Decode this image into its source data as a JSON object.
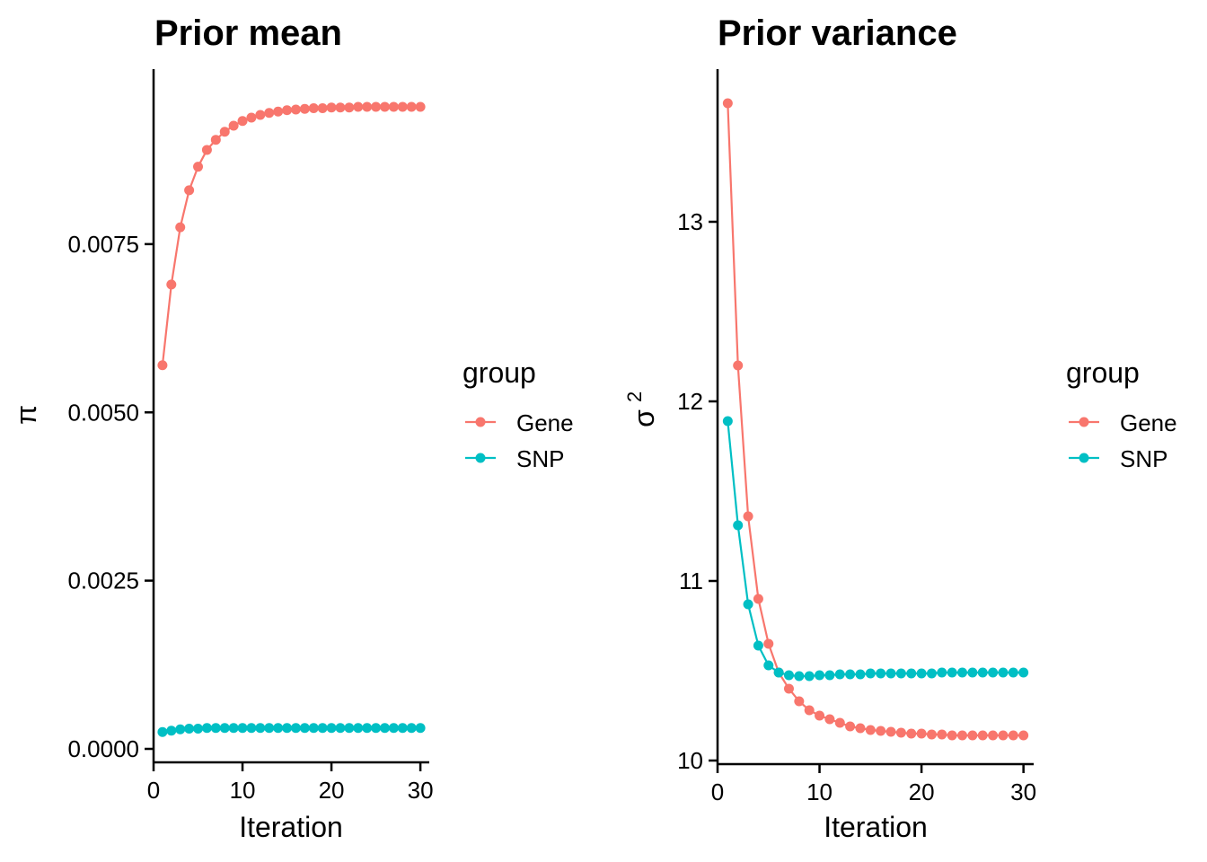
{
  "chart_data": [
    {
      "type": "line",
      "title": "Prior mean",
      "xlabel": "Iteration",
      "ylabel": "π",
      "xlim": [
        0,
        31
      ],
      "ylim": [
        -0.0002,
        0.0101
      ],
      "xticks": [
        0,
        10,
        20,
        30
      ],
      "xtick_labels": [
        "0",
        "10",
        "20",
        "30"
      ],
      "yticks": [
        0.0,
        0.0025,
        0.005,
        0.0075
      ],
      "ytick_labels": [
        "0.0000",
        "0.0025",
        "0.0050",
        "0.0075"
      ],
      "x": [
        1,
        2,
        3,
        4,
        5,
        6,
        7,
        8,
        9,
        10,
        11,
        12,
        13,
        14,
        15,
        16,
        17,
        18,
        19,
        20,
        21,
        22,
        23,
        24,
        25,
        26,
        27,
        28,
        29,
        30
      ],
      "series": [
        {
          "name": "Gene",
          "color": "#F8766D",
          "values": [
            0.0057,
            0.0069,
            0.00775,
            0.0083,
            0.00865,
            0.0089,
            0.00905,
            0.00917,
            0.00926,
            0.00933,
            0.00938,
            0.00942,
            0.00945,
            0.00947,
            0.00949,
            0.0095,
            0.00951,
            0.00952,
            0.00952,
            0.00953,
            0.00953,
            0.00953,
            0.00954,
            0.00954,
            0.00954,
            0.00954,
            0.00954,
            0.00954,
            0.00954,
            0.00954
          ]
        },
        {
          "name": "SNP",
          "color": "#00BFC4",
          "values": [
            0.00025,
            0.00027,
            0.00029,
            0.0003,
            0.0003,
            0.00031,
            0.00031,
            0.00031,
            0.00031,
            0.00031,
            0.00031,
            0.00031,
            0.00031,
            0.00031,
            0.00031,
            0.00031,
            0.00031,
            0.00031,
            0.00031,
            0.00031,
            0.00031,
            0.00031,
            0.00031,
            0.00031,
            0.00031,
            0.00031,
            0.00031,
            0.00031,
            0.00031,
            0.00031
          ]
        }
      ],
      "legend_title": "group"
    },
    {
      "type": "line",
      "title": "Prior variance",
      "xlabel": "Iteration",
      "ylabel": "σ²",
      "ylabel_base": "σ",
      "ylabel_sup": "2",
      "xlim": [
        0,
        31
      ],
      "ylim": [
        9.98,
        13.85
      ],
      "xticks": [
        0,
        10,
        20,
        30
      ],
      "xtick_labels": [
        "0",
        "10",
        "20",
        "30"
      ],
      "yticks": [
        10,
        11,
        12,
        13
      ],
      "ytick_labels": [
        "10",
        "11",
        "12",
        "13"
      ],
      "x": [
        1,
        2,
        3,
        4,
        5,
        6,
        7,
        8,
        9,
        10,
        11,
        12,
        13,
        14,
        15,
        16,
        17,
        18,
        19,
        20,
        21,
        22,
        23,
        24,
        25,
        26,
        27,
        28,
        29,
        30
      ],
      "series": [
        {
          "name": "Gene",
          "color": "#F8766D",
          "values": [
            13.66,
            12.2,
            11.36,
            10.9,
            10.65,
            10.49,
            10.4,
            10.33,
            10.28,
            10.25,
            10.23,
            10.21,
            10.19,
            10.18,
            10.17,
            10.165,
            10.16,
            10.155,
            10.15,
            10.15,
            10.145,
            10.145,
            10.14,
            10.14,
            10.14,
            10.14,
            10.14,
            10.14,
            10.14,
            10.14
          ]
        },
        {
          "name": "SNP",
          "color": "#00BFC4",
          "values": [
            11.89,
            11.31,
            10.87,
            10.64,
            10.53,
            10.49,
            10.475,
            10.47,
            10.47,
            10.475,
            10.475,
            10.48,
            10.48,
            10.48,
            10.485,
            10.485,
            10.485,
            10.485,
            10.485,
            10.485,
            10.485,
            10.49,
            10.49,
            10.49,
            10.49,
            10.49,
            10.49,
            10.49,
            10.49,
            10.49
          ]
        }
      ],
      "legend_title": "group"
    }
  ]
}
